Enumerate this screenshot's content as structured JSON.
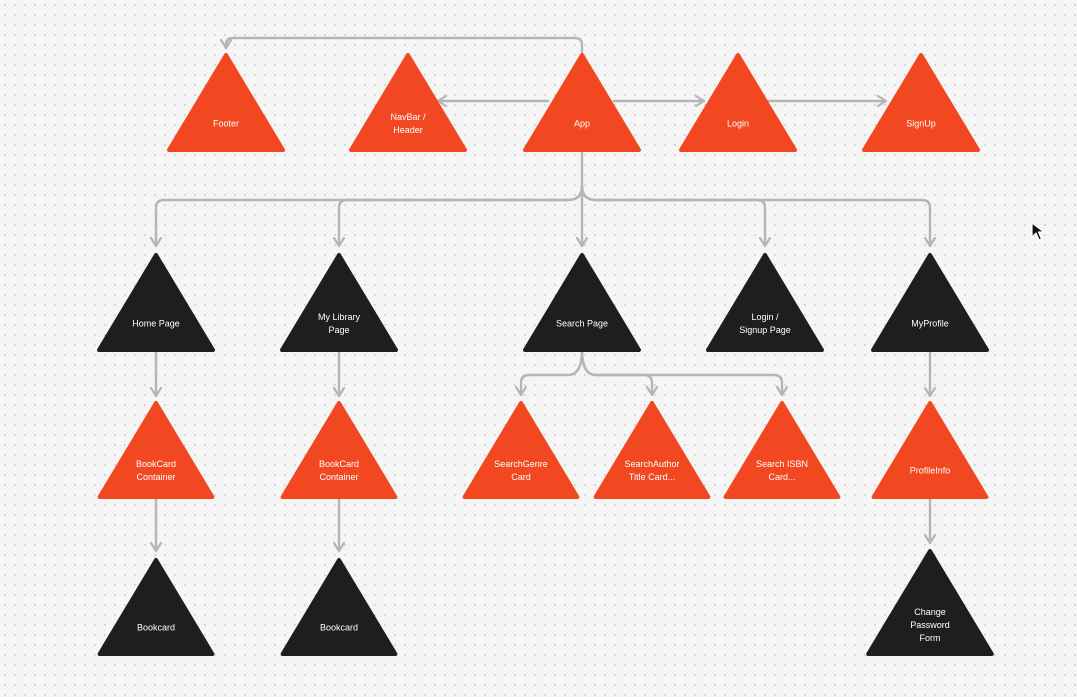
{
  "nodes": {
    "footer": {
      "lines": [
        "Footer"
      ],
      "color": "#f24822"
    },
    "navbar": {
      "lines": [
        "NavBar /",
        "Header"
      ],
      "color": "#f24822"
    },
    "app": {
      "lines": [
        "App"
      ],
      "color": "#f24822"
    },
    "login": {
      "lines": [
        "Login"
      ],
      "color": "#f24822"
    },
    "signup": {
      "lines": [
        "SignUp"
      ],
      "color": "#f24822"
    },
    "home_page": {
      "lines": [
        "Home Page"
      ],
      "color": "#1e1e1e"
    },
    "my_library_page": {
      "lines": [
        "My Library",
        "Page"
      ],
      "color": "#1e1e1e"
    },
    "search_page": {
      "lines": [
        "Search Page"
      ],
      "color": "#1e1e1e"
    },
    "login_signup_page": {
      "lines": [
        "Login /",
        "Signup Page"
      ],
      "color": "#1e1e1e"
    },
    "my_profile": {
      "lines": [
        "MyProfile"
      ],
      "color": "#1e1e1e"
    },
    "bookcard_container_home": {
      "lines": [
        "BookCard",
        "Container"
      ],
      "color": "#f24822"
    },
    "bookcard_container_library": {
      "lines": [
        "BookCard",
        "Container"
      ],
      "color": "#f24822"
    },
    "search_genre_card": {
      "lines": [
        "SearchGenre",
        "Card"
      ],
      "color": "#f24822"
    },
    "search_author_title_card": {
      "lines": [
        "SearchAuthor",
        "Title Card..."
      ],
      "color": "#f24822"
    },
    "search_isbn_card": {
      "lines": [
        "Search ISBN",
        "Card..."
      ],
      "color": "#f24822"
    },
    "profile_info": {
      "lines": [
        "ProfileInfo"
      ],
      "color": "#f24822"
    },
    "bookcard_home": {
      "lines": [
        "Bookcard"
      ],
      "color": "#1e1e1e"
    },
    "bookcard_library": {
      "lines": [
        "Bookcard"
      ],
      "color": "#1e1e1e"
    },
    "change_password_form": {
      "lines": [
        "Change",
        "Password",
        "Form"
      ],
      "color": "#1e1e1e"
    }
  },
  "edges": [
    [
      "app",
      "footer"
    ],
    [
      "app",
      "navbar"
    ],
    [
      "app",
      "login"
    ],
    [
      "login",
      "signup"
    ],
    [
      "app",
      "home_page"
    ],
    [
      "app",
      "my_library_page"
    ],
    [
      "app",
      "search_page"
    ],
    [
      "app",
      "login_signup_page"
    ],
    [
      "app",
      "my_profile"
    ],
    [
      "home_page",
      "bookcard_container_home"
    ],
    [
      "bookcard_container_home",
      "bookcard_home"
    ],
    [
      "my_library_page",
      "bookcard_container_library"
    ],
    [
      "bookcard_container_library",
      "bookcard_library"
    ],
    [
      "search_page",
      "search_genre_card"
    ],
    [
      "search_page",
      "search_author_title_card"
    ],
    [
      "search_page",
      "search_isbn_card"
    ],
    [
      "my_profile",
      "profile_info"
    ],
    [
      "profile_info",
      "change_password_form"
    ]
  ],
  "connector_color": "#b5b5b5",
  "cursor": "arrow-cursor-icon"
}
